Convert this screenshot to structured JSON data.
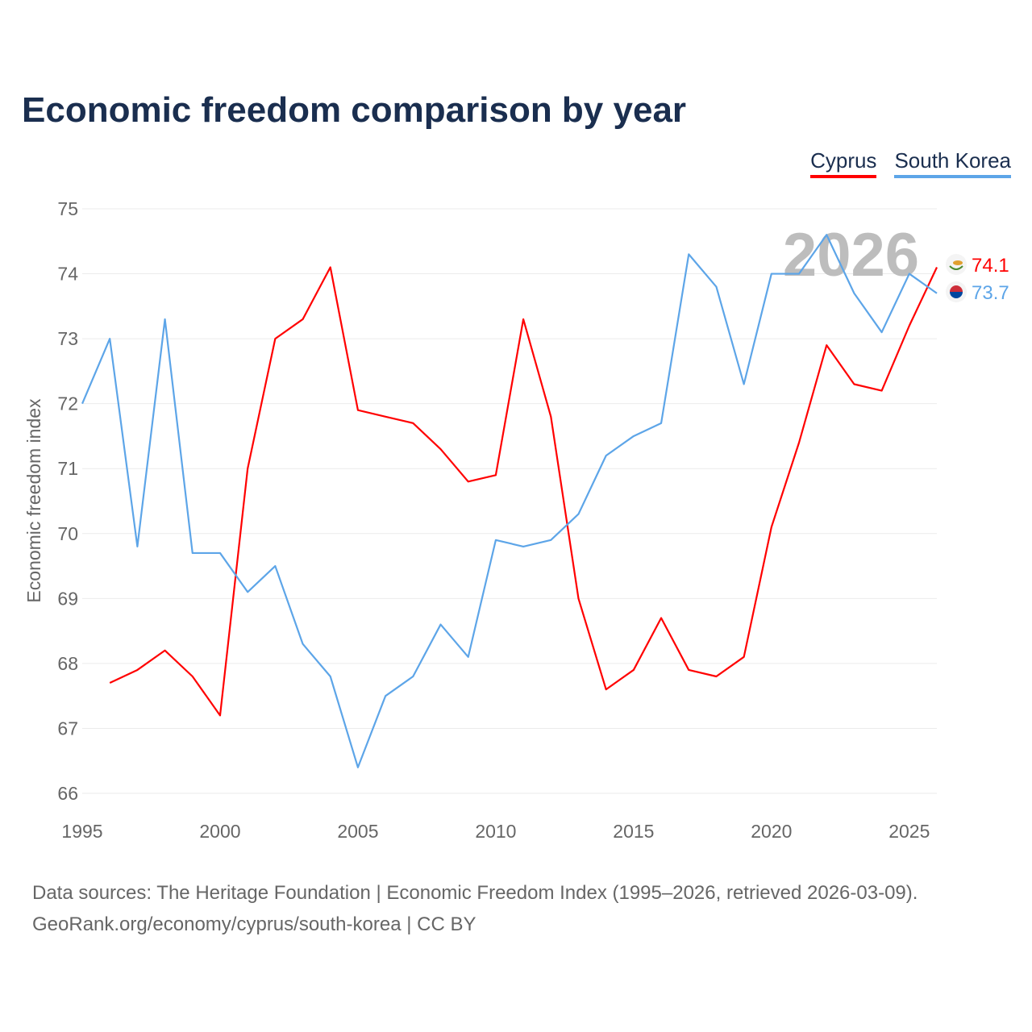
{
  "title": "Economic freedom comparison by year",
  "footer": {
    "line1": "Data sources: The Heritage Foundation | Economic Freedom Index (1995–2026, retrieved 2026-03-09).",
    "line2": "GeoRank.org/economy/cyprus/south-korea | CC BY"
  },
  "chart_data": {
    "type": "line",
    "title": "Economic freedom comparison by year",
    "xlabel": "",
    "ylabel": "Economic freedom index",
    "xlim": [
      1995,
      2026
    ],
    "ylim": [
      66,
      75
    ],
    "x_ticks": [
      1995,
      2000,
      2005,
      2010,
      2015,
      2020,
      2025
    ],
    "y_ticks": [
      66,
      67,
      68,
      69,
      70,
      71,
      72,
      73,
      74,
      75
    ],
    "watermark_year": "2026",
    "legend_position": "top-right",
    "grid": true,
    "series": [
      {
        "name": "Cyprus",
        "color": "#ff0000",
        "end_label": "74.1",
        "start_year": 1996,
        "values": [
          67.7,
          67.9,
          68.2,
          67.8,
          67.2,
          71.0,
          73.0,
          73.3,
          74.1,
          71.9,
          71.8,
          71.7,
          71.3,
          70.8,
          70.9,
          73.3,
          71.8,
          69.0,
          67.6,
          67.9,
          68.7,
          67.9,
          67.8,
          68.1,
          70.1,
          71.4,
          72.9,
          72.3,
          72.2,
          73.2,
          74.1
        ]
      },
      {
        "name": "South Korea",
        "color": "#5da5e8",
        "end_label": "73.7",
        "start_year": 1995,
        "values": [
          72.0,
          73.0,
          69.8,
          73.3,
          69.7,
          69.7,
          69.1,
          69.5,
          68.3,
          67.8,
          66.4,
          67.5,
          67.8,
          68.6,
          68.1,
          69.9,
          69.8,
          69.9,
          70.3,
          71.2,
          71.5,
          71.7,
          74.3,
          73.8,
          72.3,
          74.0,
          74.0,
          74.6,
          73.7,
          73.1,
          74.0,
          73.7
        ]
      }
    ]
  }
}
